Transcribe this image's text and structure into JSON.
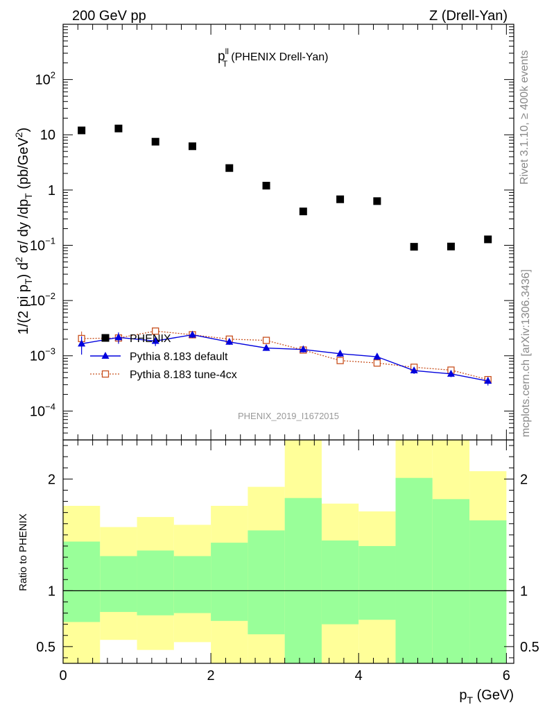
{
  "header": {
    "left": "200 GeV pp",
    "right": "Z (Drell-Yan)"
  },
  "side": {
    "rivet": "Rivet 3.1.10, ≥ 400k events",
    "mcplots": "mcplots.cern.ch [arXiv:1306.3436]"
  },
  "colors": {
    "data": "#000000",
    "default": "#0000dd",
    "tune": "#c8501e",
    "band_inner": "#99ff99",
    "band_outer": "#ffff99"
  },
  "chart_data": [
    {
      "type": "scatter",
      "title": "p_T^ll (PHENIX Drell-Yan)",
      "title_parts": {
        "main": "p",
        "sup": "ll",
        "sub": "T",
        "rest": "(PHENIX Drell-Yan)"
      },
      "watermark": "PHENIX_2019_I1672015",
      "ylabel": "1/(2 pi p_T) d^2 σ/ dy /dp_T (pb/GeV^2)",
      "ylabel_parts": [
        "1/(2 pi p",
        "T",
        ") d",
        "2",
        " σ/ dy /dp",
        "T",
        " (pb/GeV",
        "2",
        ")"
      ],
      "yscale": "log",
      "ylim": [
        3e-05,
        1000
      ],
      "xlim": [
        0,
        6.1
      ],
      "yticks": [
        {
          "v": 0.0001,
          "base": "10",
          "exp": "−4"
        },
        {
          "v": 0.001,
          "base": "10",
          "exp": "−3"
        },
        {
          "v": 0.01,
          "base": "10",
          "exp": "−2"
        },
        {
          "v": 0.1,
          "base": "10",
          "exp": "−1"
        },
        {
          "v": 1,
          "base": "1",
          "exp": ""
        },
        {
          "v": 10,
          "base": "10",
          "exp": ""
        },
        {
          "v": 100,
          "base": "10",
          "exp": "2"
        }
      ],
      "legend": {
        "position": "middle-left",
        "entries": [
          {
            "key": "data",
            "label": "PHENIX"
          },
          {
            "key": "default",
            "label": "Pythia 8.183 default"
          },
          {
            "key": "tune",
            "label": "Pythia 8.183 tune-4cx"
          }
        ]
      },
      "series": [
        {
          "name": "PHENIX",
          "key": "data",
          "x": [
            0.25,
            0.75,
            1.25,
            1.75,
            2.25,
            2.75,
            3.25,
            3.75,
            4.25,
            4.75,
            5.25,
            5.75
          ],
          "values": [
            12,
            13,
            7.5,
            6.2,
            2.5,
            1.2,
            0.41,
            0.68,
            0.63,
            0.094,
            0.095,
            0.128
          ]
        },
        {
          "name": "Pythia 8.183 default",
          "key": "default",
          "x": [
            0.25,
            0.75,
            1.25,
            1.75,
            2.25,
            2.75,
            3.25,
            3.75,
            4.25,
            4.75,
            5.25,
            5.75
          ],
          "values": [
            0.00165,
            0.00215,
            0.00185,
            0.0024,
            0.00178,
            0.00138,
            0.0013,
            0.00109,
            0.00096,
            0.00054,
            0.00047,
            0.00035
          ],
          "errors": [
            0.0006,
            0.0005,
            0.00035,
            0.0003,
            0.0002,
            0.00015,
            0.00015,
            0.00013,
            0.00012,
            7e-05,
            6e-05,
            6e-05
          ]
        },
        {
          "name": "Pythia 8.183 tune-4cx",
          "key": "tune",
          "x": [
            0.25,
            0.75,
            1.25,
            1.75,
            2.25,
            2.75,
            3.25,
            3.75,
            4.25,
            4.75,
            5.25,
            5.75
          ],
          "values": [
            0.00205,
            0.0021,
            0.0028,
            0.0024,
            0.002,
            0.0019,
            0.00127,
            0.00082,
            0.00074,
            0.00062,
            0.00055,
            0.00037
          ],
          "errors": [
            0.0007,
            0.0004,
            0.0003,
            0.00025,
            0.0002,
            0.00018,
            0.00013,
            0.0001,
            9e-05,
            8e-05,
            7e-05,
            6e-05
          ]
        }
      ]
    },
    {
      "type": "area",
      "ylabel": "Ratio to PHENIX",
      "xlabel": "p_T (GeV)",
      "xlabel_parts": {
        "main": "p",
        "sub": "T",
        "rest": " (GeV)"
      },
      "xlim": [
        0,
        6.1
      ],
      "ylim": [
        0.35,
        2.35
      ],
      "xticks": [
        0,
        2,
        4,
        6
      ],
      "yticks": [
        0.5,
        1,
        2
      ],
      "bins": [
        {
          "lo": 0.0,
          "hi": 0.5,
          "inner": [
            0.72,
            1.44
          ],
          "outer": [
            0.29,
            1.76
          ]
        },
        {
          "lo": 0.5,
          "hi": 1.0,
          "inner": [
            0.81,
            1.31
          ],
          "outer": [
            0.56,
            1.57
          ]
        },
        {
          "lo": 1.0,
          "hi": 1.5,
          "inner": [
            0.78,
            1.36
          ],
          "outer": [
            0.47,
            1.66
          ]
        },
        {
          "lo": 1.5,
          "hi": 2.0,
          "inner": [
            0.8,
            1.31
          ],
          "outer": [
            0.54,
            1.59
          ]
        },
        {
          "lo": 2.0,
          "hi": 2.5,
          "inner": [
            0.73,
            1.43
          ],
          "outer": [
            0.32,
            1.76
          ]
        },
        {
          "lo": 2.5,
          "hi": 3.0,
          "inner": [
            0.61,
            1.54
          ],
          "outer": [
            0.29,
            1.93
          ]
        },
        {
          "lo": 3.0,
          "hi": 3.5,
          "inner": [
            0.22,
            1.83
          ],
          "outer": [
            0.2,
            2.5
          ]
        },
        {
          "lo": 3.5,
          "hi": 4.0,
          "inner": [
            0.7,
            1.45
          ],
          "outer": [
            0.29,
            1.78
          ]
        },
        {
          "lo": 4.0,
          "hi": 4.5,
          "inner": [
            0.74,
            1.4
          ],
          "outer": [
            0.3,
            1.71
          ]
        },
        {
          "lo": 4.5,
          "hi": 5.0,
          "inner": [
            0.05,
            2.01
          ],
          "outer": [
            0.01,
            2.5
          ]
        },
        {
          "lo": 5.0,
          "hi": 5.5,
          "inner": [
            0.2,
            1.82
          ],
          "outer": [
            0.1,
            2.5
          ]
        },
        {
          "lo": 5.5,
          "hi": 6.0,
          "inner": [
            0.27,
            1.63
          ],
          "outer": [
            0.42,
            2.07
          ]
        }
      ],
      "reference_line": 1
    }
  ]
}
